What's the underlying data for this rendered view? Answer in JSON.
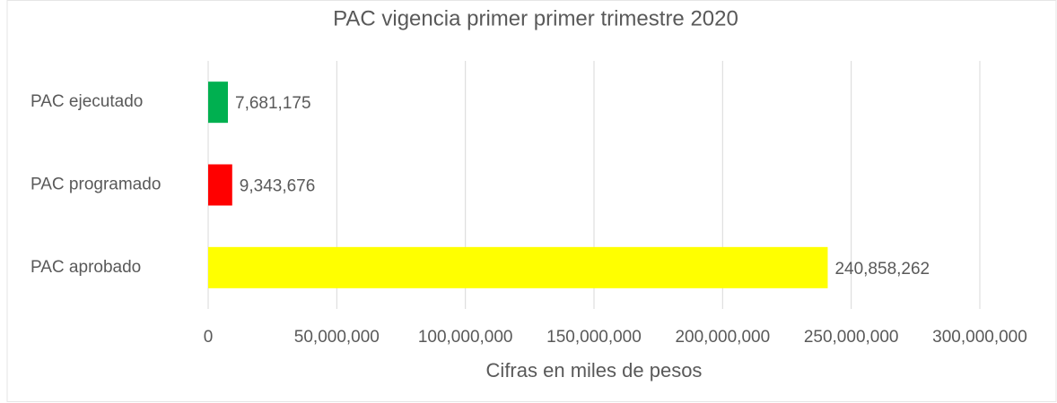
{
  "chart_data": {
    "type": "bar",
    "orientation": "horizontal",
    "title": "PAC vigencia primer primer trimestre 2020",
    "x_axis_label": "Cifras en miles de pesos",
    "categories": [
      "PAC ejecutado",
      "PAC programado",
      "PAC aprobado"
    ],
    "values": [
      7681175,
      9343676,
      240858262
    ],
    "value_labels": [
      "7,681,175",
      "9,343,676",
      "240,858,262"
    ],
    "colors": [
      "#00b050",
      "#ff0000",
      "#ffff00"
    ],
    "xlim": [
      0,
      300000000
    ],
    "xticks": [
      0,
      {
        "value": 50000000,
        "label": "50,000,000"
      },
      {
        "value": 100000000,
        "label": "100,000,000"
      },
      {
        "value": 150000000,
        "label": "150,000,000"
      },
      {
        "value": 200000000,
        "label": "200,000,000"
      },
      {
        "value": 250000000,
        "label": "250,000,000"
      },
      {
        "value": 300000000,
        "label": "300,000,000"
      }
    ],
    "grid": true
  }
}
